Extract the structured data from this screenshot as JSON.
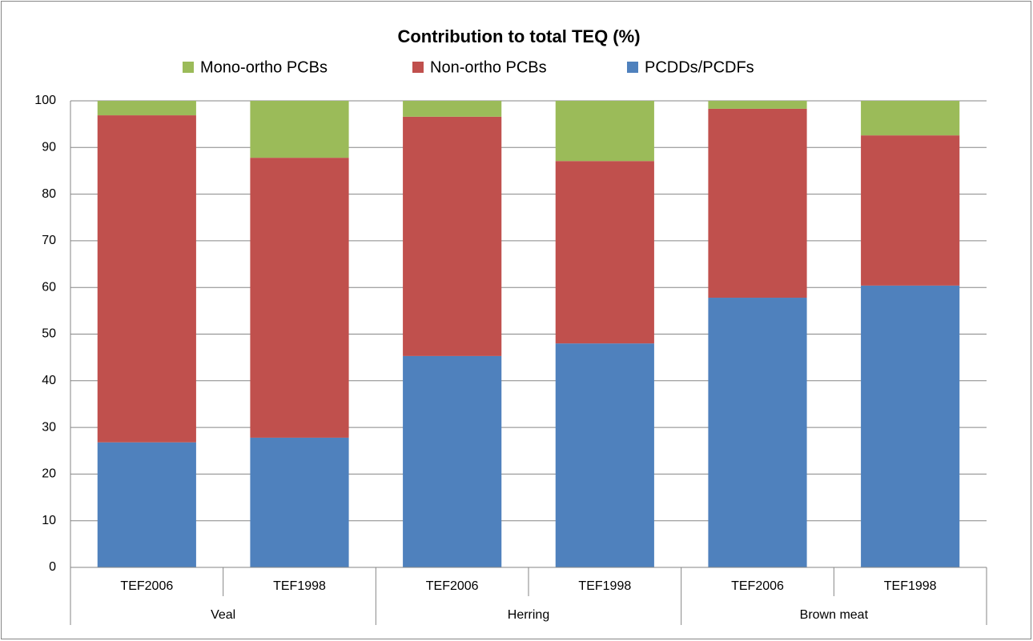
{
  "chart_data": {
    "type": "stacked_bar",
    "title": "Contribution to total TEQ (%)",
    "categories": [
      "TEF2006",
      "TEF1998",
      "TEF2006",
      "TEF1998",
      "TEF2006",
      "TEF1998"
    ],
    "groups": [
      "Veal",
      "Herring",
      "Brown meat"
    ],
    "series": [
      {
        "name": "Mono-ortho PCBs",
        "color": "#9bbb59",
        "values": [
          3.1,
          12.2,
          3.4,
          12.9,
          1.7,
          7.4
        ]
      },
      {
        "name": "Non-ortho PCBs",
        "color": "#c0504d",
        "values": [
          70.1,
          60.0,
          51.3,
          39.1,
          40.5,
          32.2
        ]
      },
      {
        "name": "PCDDs/PCDFs",
        "color": "#4f81bd",
        "values": [
          26.8,
          27.8,
          45.3,
          48.0,
          57.8,
          60.4
        ]
      }
    ],
    "ylim": [
      0,
      100
    ],
    "yticks": [
      0,
      10,
      20,
      30,
      40,
      50,
      60,
      70,
      80,
      90,
      100
    ],
    "grid": true,
    "legend": "top"
  }
}
